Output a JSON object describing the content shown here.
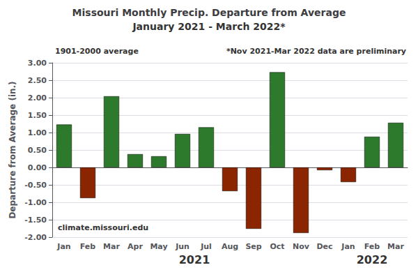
{
  "chart_data": {
    "type": "bar",
    "title": "Missouri Monthly Precip. Departure from Average",
    "subtitle": "January 2021 - March 2022*",
    "ylabel": "Departure from Average (in.)",
    "annotations": [
      "1901-2000 average",
      "*Nov 2021-Mar 2022 data are preliminary"
    ],
    "watermark": "climate.missouri.edu",
    "year_labels": [
      "2021",
      "2022"
    ],
    "categories": [
      "Jan",
      "Feb",
      "Mar",
      "Apr",
      "May",
      "Jun",
      "Jul",
      "Aug",
      "Sep",
      "Oct",
      "Nov",
      "Dec",
      "Jan",
      "Feb",
      "Mar"
    ],
    "values": [
      1.23,
      -0.88,
      2.04,
      0.38,
      0.32,
      0.96,
      1.15,
      -0.68,
      -1.76,
      2.73,
      -1.88,
      -0.08,
      -0.42,
      0.88,
      1.28
    ],
    "colors": [
      "#2d7a2d",
      "#8b2500",
      "#2d7a2d",
      "#2d7a2d",
      "#2d7a2d",
      "#2d7a2d",
      "#2d7a2d",
      "#8b2500",
      "#8b2500",
      "#2d7a2d",
      "#8b2500",
      "#8b2500",
      "#8b2500",
      "#2d7a2d",
      "#2d7a2d"
    ],
    "ylim": [
      -2.0,
      3.0
    ],
    "yticks": [
      {
        "value": -2.0,
        "label": "-2.00"
      },
      {
        "value": -1.5,
        "label": "-1.50"
      },
      {
        "value": -1.0,
        "label": "-1.00"
      },
      {
        "value": -0.5,
        "label": "-0.50"
      },
      {
        "value": 0.0,
        "label": "0.00"
      },
      {
        "value": 0.5,
        "label": "0.50"
      },
      {
        "value": 1.0,
        "label": "1.00"
      },
      {
        "value": 1.5,
        "label": "1.50"
      },
      {
        "value": 2.0,
        "label": "2.00"
      },
      {
        "value": 2.5,
        "label": "2.50"
      },
      {
        "value": 3.0,
        "label": "3.00"
      }
    ],
    "grid": true
  }
}
